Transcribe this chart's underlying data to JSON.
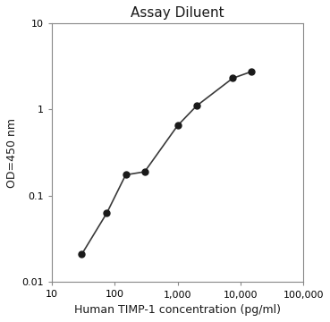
{
  "title": "Assay Diluent",
  "xlabel": "Human TIMP-1 concentration (pg/ml)",
  "ylabel": "OD=450 nm",
  "x_values": [
    30,
    75,
    150,
    300,
    1000,
    2000,
    7500,
    15000
  ],
  "y_values": [
    0.021,
    0.063,
    0.175,
    0.19,
    0.65,
    1.1,
    2.3,
    2.75
  ],
  "xlim": [
    10,
    100000
  ],
  "ylim": [
    0.01,
    10
  ],
  "line_color": "#3a3a3a",
  "marker_color": "#1a1a1a",
  "marker_size": 5,
  "line_width": 1.2,
  "background_color": "#ffffff",
  "title_fontsize": 11,
  "label_fontsize": 9,
  "tick_fontsize": 8,
  "x_ticks": [
    10,
    100,
    1000,
    10000,
    100000
  ],
  "x_tick_labels": [
    "10",
    "100",
    "1,000",
    "10,000",
    "100,000"
  ],
  "y_ticks": [
    0.01,
    0.1,
    1,
    10
  ],
  "y_tick_labels": [
    "0.01",
    "0.1",
    "1",
    "10"
  ]
}
